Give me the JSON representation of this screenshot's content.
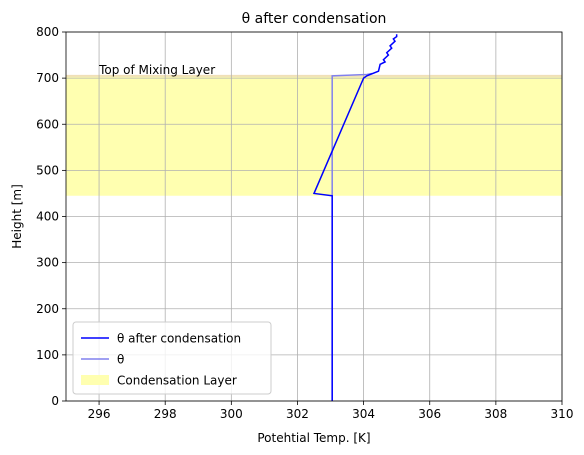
{
  "chart_data": {
    "type": "line",
    "title": "θ after condensation",
    "xlabel": "Potehtial Temp. [K]",
    "ylabel": "Height [m]",
    "xlim": [
      295,
      310
    ],
    "ylim": [
      0,
      800
    ],
    "xticks": [
      296,
      298,
      300,
      302,
      304,
      306,
      308,
      310
    ],
    "yticks": [
      0,
      100,
      200,
      300,
      400,
      500,
      600,
      700,
      800
    ],
    "grid": true,
    "legend_position": "lower-left",
    "series": [
      {
        "name": "θ after condensation",
        "color": "#0000ff",
        "points": [
          [
            303.05,
            0
          ],
          [
            303.05,
            445
          ],
          [
            302.5,
            450
          ],
          [
            304.0,
            700
          ],
          [
            304.1,
            705
          ],
          [
            304.45,
            715
          ],
          [
            304.5,
            730
          ],
          [
            304.65,
            735
          ],
          [
            304.6,
            740
          ],
          [
            304.75,
            750
          ],
          [
            304.7,
            755
          ],
          [
            304.85,
            765
          ],
          [
            304.8,
            770
          ],
          [
            304.95,
            780
          ],
          [
            304.9,
            785
          ],
          [
            305.0,
            790
          ],
          [
            305.0,
            795
          ]
        ]
      },
      {
        "name": "θ",
        "color": "#8080ee",
        "points": [
          [
            303.05,
            0
          ],
          [
            303.05,
            705
          ],
          [
            304.1,
            708
          ],
          [
            304.25,
            710
          ]
        ]
      }
    ],
    "bands": [
      {
        "name": "Condensation Layer",
        "color": "#ffffb0",
        "y0": 445,
        "y1": 705
      }
    ],
    "annotations": [
      {
        "text": "Top of Mixing Layer",
        "x": 296,
        "y": 705
      }
    ],
    "mixing_layer_top": {
      "y": 705,
      "color": "#f0e0b8"
    }
  }
}
